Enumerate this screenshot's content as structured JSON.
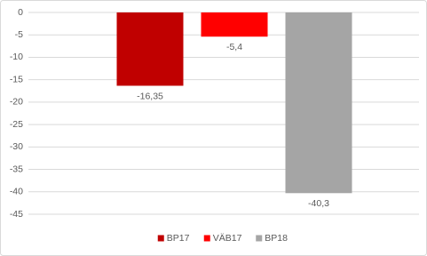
{
  "chart_data": {
    "type": "bar",
    "categories": [
      null
    ],
    "series": [
      {
        "name": "BP17",
        "color": "#c00000",
        "values": [
          -16.35
        ],
        "value_labels": [
          "-16,35"
        ]
      },
      {
        "name": "VÄB17",
        "color": "#ff0000",
        "values": [
          -5.4
        ],
        "value_labels": [
          "-5,4"
        ]
      },
      {
        "name": "BP18",
        "color": "#a5a5a5",
        "values": [
          -40.3
        ],
        "value_labels": [
          "-40,3"
        ]
      }
    ],
    "ylim": [
      -45,
      0
    ],
    "yticks": [
      0,
      -5,
      -10,
      -15,
      -20,
      -25,
      -30,
      -35,
      -40,
      -45
    ],
    "grid": true,
    "legend": "bottom"
  }
}
